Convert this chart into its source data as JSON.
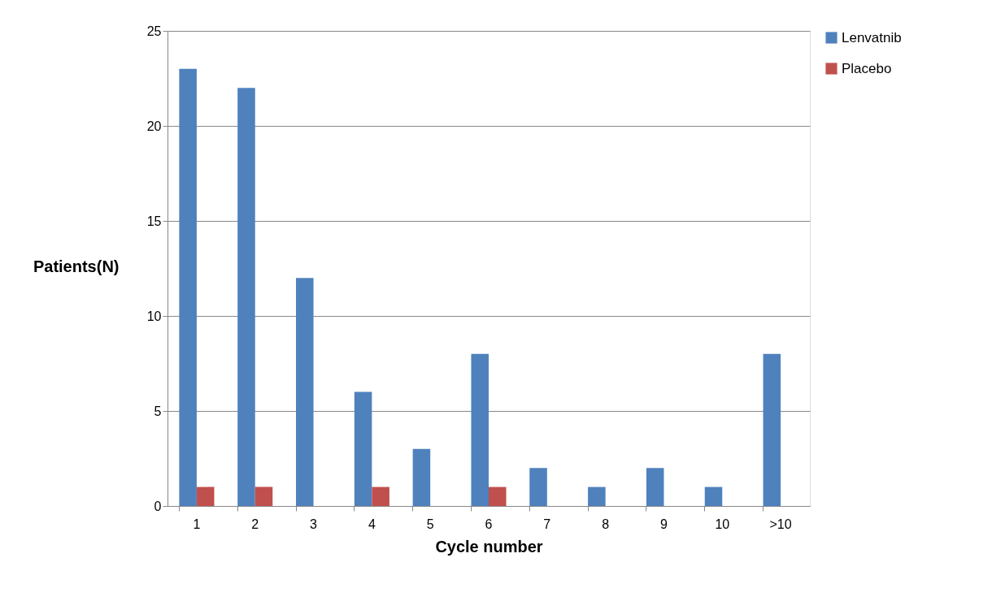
{
  "chart_data": {
    "type": "bar",
    "xlabel": "Cycle number",
    "ylabel": "Patients(N)",
    "categories": [
      "1",
      "2",
      "3",
      "4",
      "5",
      "6",
      "7",
      "8",
      "9",
      "10",
      ">10"
    ],
    "series": [
      {
        "name": "Lenvatnib",
        "color": "#4f81bd",
        "values": [
          23,
          22,
          12,
          6,
          3,
          8,
          2,
          1,
          2,
          1,
          8
        ]
      },
      {
        "name": "Placebo",
        "color": "#c0504d",
        "values": [
          1,
          1,
          0,
          1,
          0,
          1,
          0,
          0,
          0,
          0,
          0
        ]
      }
    ],
    "ylim": [
      0,
      25
    ],
    "yticks": [
      0,
      5,
      10,
      15,
      20,
      25
    ],
    "grid": "y",
    "legend": "right"
  }
}
